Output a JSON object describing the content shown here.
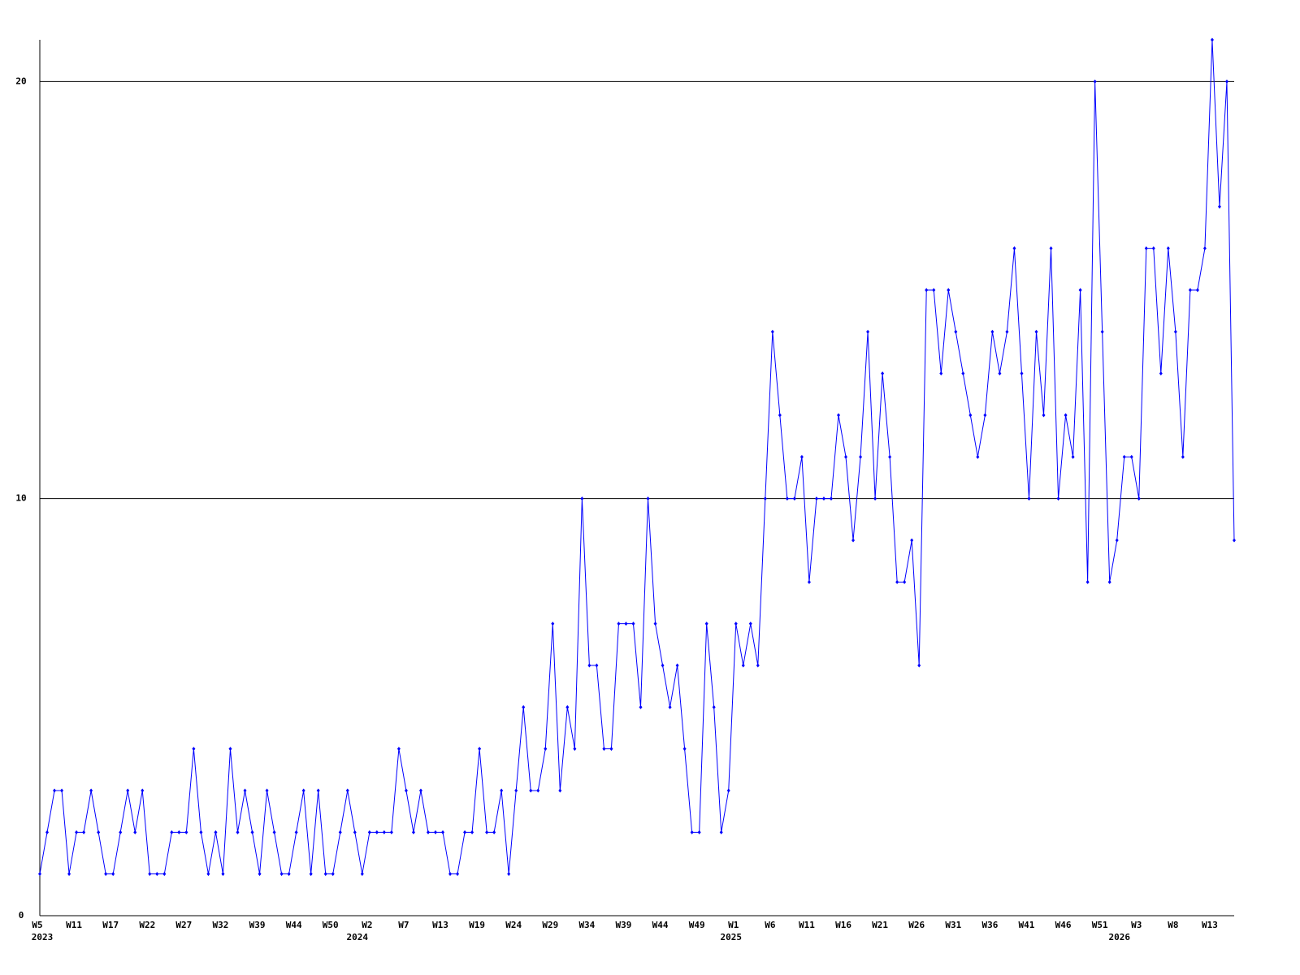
{
  "chart_data": {
    "type": "line",
    "categories": [
      "W5",
      null,
      null,
      null,
      null,
      "W11",
      null,
      null,
      null,
      null,
      "W17",
      null,
      null,
      null,
      null,
      "W22",
      null,
      null,
      null,
      null,
      "W27",
      null,
      null,
      null,
      null,
      "W32",
      null,
      null,
      null,
      null,
      "W39",
      null,
      null,
      null,
      null,
      "W44",
      null,
      null,
      null,
      null,
      "W50",
      null,
      null,
      null,
      null,
      "W2",
      null,
      null,
      null,
      null,
      "W7",
      null,
      null,
      null,
      null,
      "W13",
      null,
      null,
      null,
      null,
      "W19",
      null,
      null,
      null,
      null,
      "W24",
      null,
      null,
      null,
      null,
      "W29",
      null,
      null,
      null,
      null,
      "W34",
      null,
      null,
      null,
      null,
      "W39",
      null,
      null,
      null,
      null,
      "W44",
      null,
      null,
      null,
      null,
      "W49",
      null,
      null,
      null,
      null,
      "W1",
      null,
      null,
      null,
      null,
      "W6",
      null,
      null,
      null,
      null,
      "W11",
      null,
      null,
      null,
      null,
      "W16",
      null,
      null,
      null,
      null,
      "W21",
      null,
      null,
      null,
      null,
      "W26",
      null,
      null,
      null,
      null,
      "W31",
      null,
      null,
      null,
      null,
      "W36",
      null,
      null,
      null,
      null,
      "W41",
      null,
      null,
      null,
      null,
      "W46",
      null,
      null,
      null,
      null,
      "W51",
      null,
      null,
      null,
      null,
      "W3",
      null,
      null,
      null,
      null,
      "W8",
      null,
      null,
      null,
      null,
      "W13",
      null,
      null,
      null
    ],
    "years": [
      "2023",
      null,
      null,
      null,
      null,
      null,
      null,
      null,
      null,
      null,
      null,
      null,
      null,
      null,
      null,
      null,
      null,
      null,
      null,
      null,
      null,
      null,
      null,
      null,
      null,
      null,
      null,
      null,
      null,
      null,
      null,
      null,
      null,
      null,
      null,
      null,
      null,
      null,
      null,
      null,
      null,
      null,
      null,
      "2024",
      null,
      null,
      null,
      null,
      null,
      null,
      null,
      null,
      null,
      null,
      null,
      null,
      null,
      null,
      null,
      null,
      null,
      null,
      null,
      null,
      null,
      null,
      null,
      null,
      null,
      null,
      null,
      null,
      null,
      null,
      null,
      null,
      null,
      null,
      null,
      null,
      null,
      null,
      null,
      null,
      null,
      null,
      null,
      null,
      null,
      null,
      null,
      null,
      null,
      null,
      "2025",
      null,
      null,
      null,
      null,
      null,
      null,
      null,
      null,
      null,
      null,
      null,
      null,
      null,
      null,
      null,
      null,
      null,
      null,
      null,
      null,
      null,
      null,
      null,
      null,
      null,
      null,
      null,
      null,
      null,
      null,
      null,
      null,
      null,
      null,
      null,
      null,
      null,
      null,
      null,
      null,
      null,
      null,
      null,
      null,
      null,
      null,
      null,
      null,
      null,
      null,
      null,
      null,
      "2026",
      null,
      null,
      null,
      null,
      null,
      null,
      null,
      null,
      null,
      null,
      null,
      null,
      null,
      null,
      null,
      null
    ],
    "series": [
      {
        "color": "#0000ff",
        "values": [
          1,
          2,
          3,
          3,
          1,
          2,
          2,
          3,
          2,
          1,
          1,
          2,
          3,
          2,
          3,
          1,
          1,
          1,
          2,
          2,
          2,
          4,
          2,
          1,
          2,
          1,
          4,
          2,
          3,
          2,
          1,
          3,
          2,
          1,
          1,
          2,
          3,
          1,
          3,
          1,
          1,
          2,
          3,
          2,
          1,
          2,
          2,
          2,
          2,
          4,
          3,
          2,
          3,
          2,
          2,
          2,
          1,
          1,
          2,
          2,
          4,
          2,
          2,
          3,
          1,
          3,
          5,
          3,
          3,
          4,
          7,
          3,
          5,
          4,
          10,
          6,
          6,
          4,
          4,
          7,
          7,
          7,
          5,
          10,
          7,
          6,
          5,
          6,
          4,
          2,
          2,
          7,
          5,
          2,
          3,
          7,
          6,
          7,
          6,
          10,
          14,
          12,
          10,
          10,
          11,
          8,
          10,
          10,
          10,
          12,
          11,
          9,
          11,
          14,
          10,
          13,
          11,
          8,
          8,
          9,
          6,
          15,
          15,
          13,
          15,
          14,
          13,
          12,
          11,
          12,
          14,
          13,
          14,
          16,
          13,
          10,
          14,
          12,
          16,
          10,
          12,
          11,
          15,
          8,
          20,
          14,
          8,
          9,
          11,
          11,
          10,
          16,
          16,
          13,
          16,
          14,
          11,
          15,
          15,
          16,
          21,
          17,
          20,
          9
        ]
      }
    ],
    "ylim": [
      0,
      21
    ],
    "yticks": [
      0,
      10,
      20
    ],
    "grid": true
  }
}
